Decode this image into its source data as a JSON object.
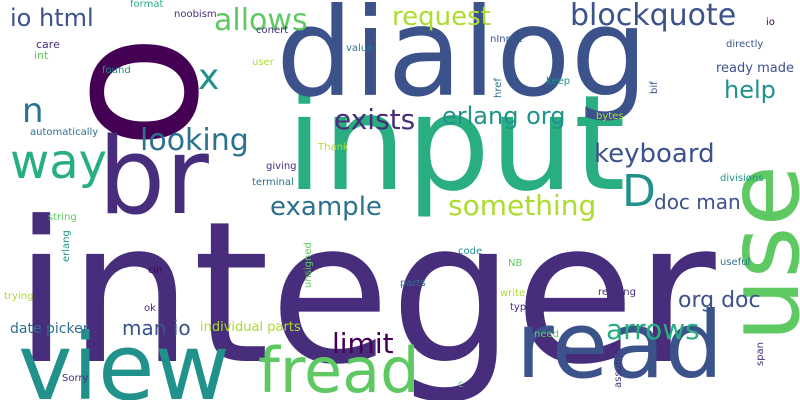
{
  "palette": {
    "dark_purple": "#440154",
    "indigo": "#472d7b",
    "blue": "#3b528b",
    "steel": "#2c728e",
    "teal": "#21918c",
    "green": "#28ae80",
    "light_green": "#5ec962",
    "lime": "#addc30",
    "yellow": "#fde725"
  },
  "words": {
    "integer": "integer",
    "input": "input",
    "dialog": "dialog",
    "view": "view",
    "read": "read",
    "use": "use",
    "br": "br",
    "fread": "fread",
    "way": "way",
    "looking": "looking",
    "exists": "exists",
    "erlang_org": "erlang org",
    "blockquote": "blockquote",
    "allows": "allows",
    "request": "request",
    "io_html": "io html",
    "keyboard": "keyboard",
    "example": "example",
    "something": "something",
    "limit": "limit",
    "arrows": "arrows",
    "org_doc": "org doc",
    "doc_man": "doc man",
    "man_io": "man io",
    "help": "help",
    "n": "n",
    "x": "x",
    "d": "D",
    "date_picker": "date picker",
    "individual_parts": "individual parts",
    "ready_made": "ready made",
    "care": "care",
    "int": "int",
    "found": "found",
    "noobism": "noobism",
    "format": "format",
    "conert": "conert",
    "value": "value",
    "ninput": "nInput",
    "user": "user",
    "directly": "directly",
    "io": "io",
    "bif": "bif",
    "keep": "keep",
    "href": "href",
    "automatically": "automatically",
    "thank": "Thank",
    "bytes": "bytes",
    "divisions": "divisions",
    "giving": "giving",
    "terminal": "terminal",
    "string": "string",
    "erlang": "erlang",
    "code": "code",
    "unsigned": "unsigned",
    "nb": "NB",
    "useful": "useful",
    "cin": "cin",
    "trying": "trying",
    "ok": "ok",
    "parts": "parts",
    "write": "write",
    "reading": "reading",
    "type": "type",
    "need": "need",
    "span": "span",
    "sorry": "Sorry",
    "c": "c",
    "assume": "assume"
  }
}
